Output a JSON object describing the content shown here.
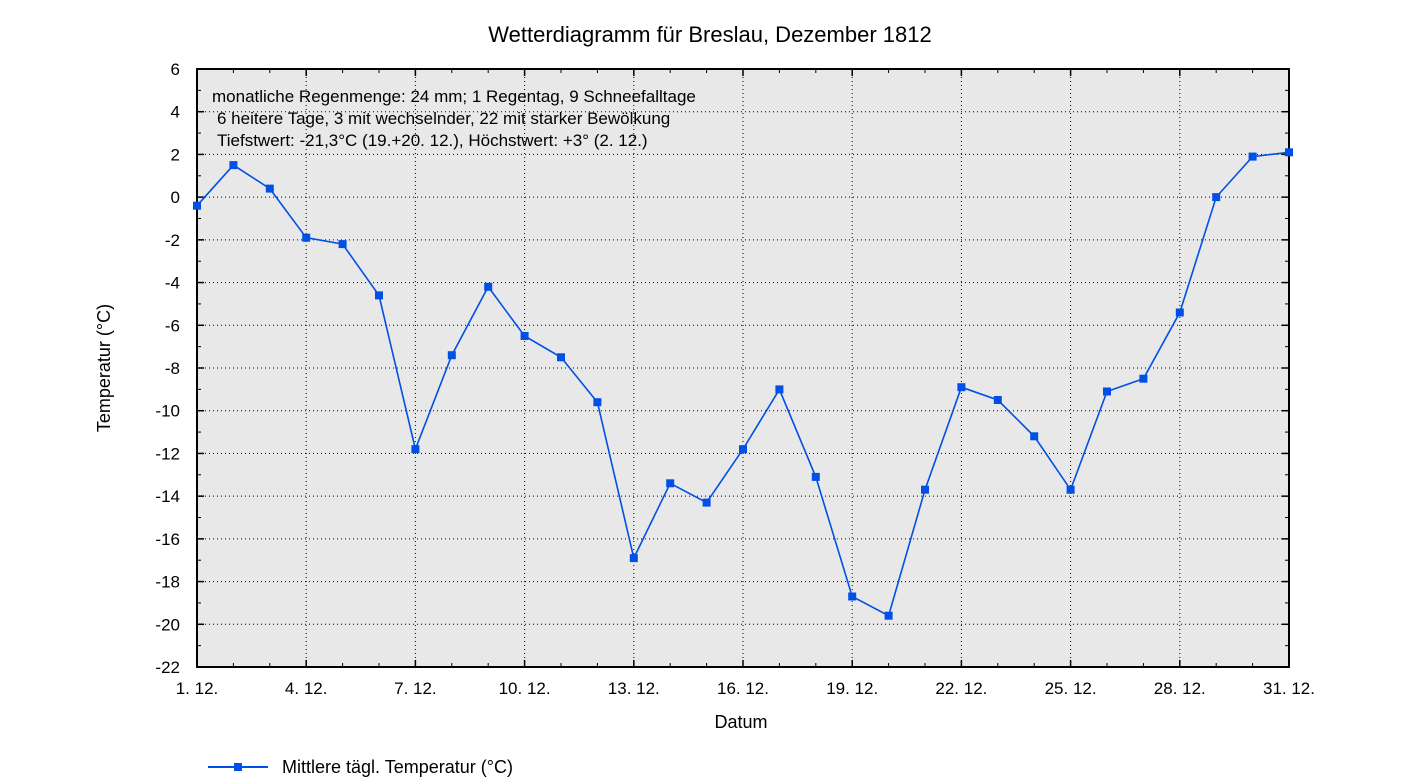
{
  "chart_data": {
    "type": "line",
    "title": "Wetterdiagramm für Breslau, Dezember 1812",
    "xlabel": "Datum",
    "ylabel": "Temperatur (°C)",
    "ylim": [
      -22,
      6
    ],
    "xlim": [
      1,
      31
    ],
    "y_ticks": [
      "6",
      "4",
      "2",
      "0",
      "-2",
      "-4",
      "-6",
      "-8",
      "-10",
      "-12",
      "-14",
      "-16",
      "-18",
      "-20",
      "-22"
    ],
    "x_tick_days": [
      1,
      4,
      7,
      10,
      13,
      16,
      19,
      22,
      25,
      28,
      31
    ],
    "x_tick_labels": [
      "1. 12.",
      "4. 12.",
      "7. 12.",
      "10. 12.",
      "13. 12.",
      "16. 12.",
      "19. 12.",
      "22. 12.",
      "25. 12.",
      "28. 12.",
      "31. 12."
    ],
    "grid": true,
    "legend_position": "bottom-left",
    "plot_background": "#e8e8e8",
    "series": [
      {
        "name": "Mittlere tägl. Temperatur (°C)",
        "color": "#0050e6",
        "x": [
          1,
          2,
          3,
          4,
          5,
          6,
          7,
          8,
          9,
          10,
          11,
          12,
          13,
          14,
          15,
          16,
          17,
          18,
          19,
          20,
          21,
          22,
          23,
          24,
          25,
          26,
          27,
          28,
          29,
          30,
          31
        ],
        "values": [
          -0.4,
          1.5,
          0.4,
          -1.9,
          -2.2,
          -4.6,
          -11.8,
          -7.4,
          -4.2,
          -6.5,
          -7.5,
          -9.6,
          -16.9,
          -13.4,
          -14.3,
          -11.8,
          -9.0,
          -13.1,
          -18.7,
          -19.6,
          -13.7,
          -8.9,
          -9.5,
          -11.2,
          -13.7,
          -9.1,
          -8.5,
          -5.4,
          0.0,
          1.9,
          2.1
        ]
      }
    ],
    "annotations": [
      "monatliche Regenmenge: 24 mm; 1 Regentag, 9 Schneefalltage",
      "6 heitere Tage, 3 mit wechselnder, 22 mit starker Bewölkung",
      "Tiefstwert: -21,3°C (19.+20. 12.), Höchstwert: +3° (2. 12.)"
    ]
  }
}
